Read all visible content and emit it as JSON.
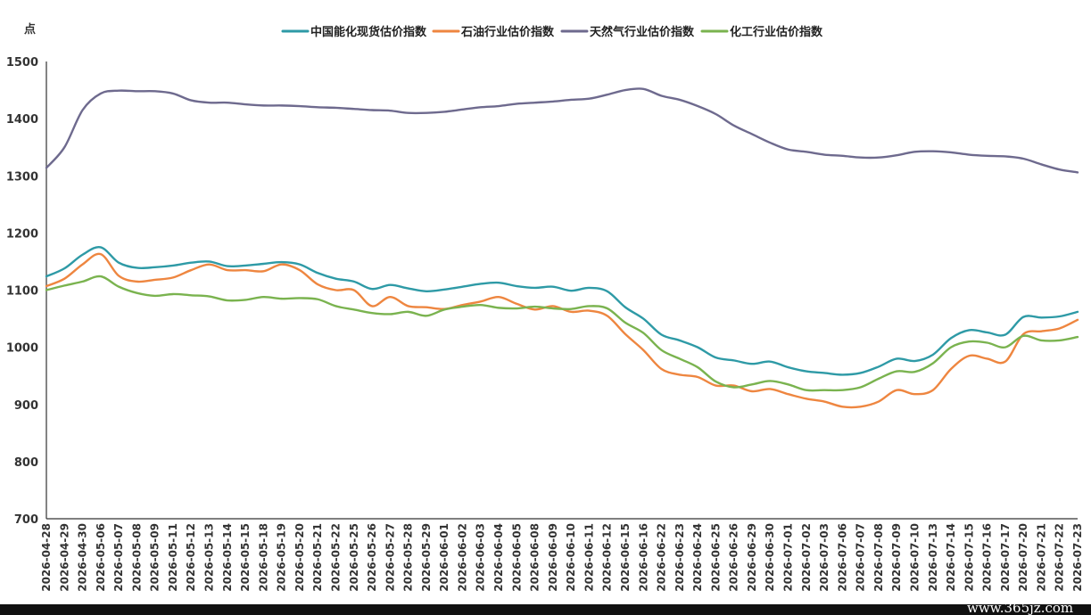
{
  "chart_data": {
    "type": "line",
    "y_unit_label": "点",
    "ylim": [
      700,
      1500
    ],
    "yticks": [
      700,
      800,
      900,
      1000,
      1100,
      1200,
      1300,
      1400,
      1500
    ],
    "grid": false,
    "legend_position": "top-center",
    "x": [
      "2026-04-28",
      "2026-04-29",
      "2026-04-30",
      "2026-05-06",
      "2026-05-07",
      "2026-05-08",
      "2026-05-09",
      "2026-05-11",
      "2026-05-12",
      "2026-05-13",
      "2026-05-14",
      "2026-05-15",
      "2026-05-18",
      "2026-05-19",
      "2026-05-20",
      "2026-05-21",
      "2026-05-22",
      "2026-05-25",
      "2026-05-26",
      "2026-05-27",
      "2026-05-28",
      "2026-05-29",
      "2026-06-01",
      "2026-06-02",
      "2026-06-03",
      "2026-06-04",
      "2026-06-05",
      "2026-06-08",
      "2026-06-09",
      "2026-06-10",
      "2026-06-11",
      "2026-06-12",
      "2026-06-15",
      "2026-06-16",
      "2026-06-22",
      "2026-06-23",
      "2026-06-24",
      "2026-06-25",
      "2026-06-26",
      "2026-06-29",
      "2026-06-30",
      "2026-07-01",
      "2026-07-02",
      "2026-07-03",
      "2026-07-06",
      "2026-07-07",
      "2026-07-08",
      "2026-07-09",
      "2026-07-10",
      "2026-07-13",
      "2026-07-14",
      "2026-07-15",
      "2026-07-16",
      "2026-07-17",
      "2026-07-20",
      "2026-07-21",
      "2026-07-22",
      "2026-07-23"
    ],
    "series": [
      {
        "name": "中国能化现货估价指数",
        "color": "#2e9aa6",
        "values": [
          1124,
          1138,
          1162,
          1175,
          1148,
          1139,
          1140,
          1143,
          1148,
          1150,
          1142,
          1143,
          1146,
          1149,
          1145,
          1130,
          1120,
          1115,
          1102,
          1109,
          1103,
          1098,
          1101,
          1106,
          1111,
          1113,
          1107,
          1104,
          1106,
          1099,
          1104,
          1098,
          1070,
          1050,
          1022,
          1012,
          1000,
          982,
          977,
          971,
          975,
          965,
          958,
          955,
          952,
          955,
          966,
          980,
          976,
          987,
          1016,
          1030,
          1026,
          1022,
          1053,
          1052,
          1054,
          1062
        ]
      },
      {
        "name": "石油行业估价指数",
        "color": "#ee8640",
        "values": [
          1107,
          1120,
          1145,
          1163,
          1125,
          1115,
          1118,
          1122,
          1135,
          1145,
          1135,
          1135,
          1133,
          1145,
          1135,
          1110,
          1100,
          1100,
          1072,
          1088,
          1072,
          1070,
          1067,
          1074,
          1080,
          1088,
          1076,
          1066,
          1072,
          1062,
          1064,
          1055,
          1023,
          995,
          962,
          952,
          948,
          933,
          933,
          923,
          927,
          918,
          910,
          905,
          896,
          896,
          905,
          925,
          918,
          925,
          962,
          985,
          980,
          975,
          1023,
          1028,
          1033,
          1048
        ]
      },
      {
        "name": "天然气行业估价指数",
        "color": "#6e6a8e",
        "values": [
          1314,
          1350,
          1415,
          1444,
          1449,
          1448,
          1448,
          1444,
          1432,
          1428,
          1428,
          1425,
          1423,
          1423,
          1422,
          1420,
          1419,
          1417,
          1415,
          1414,
          1410,
          1410,
          1412,
          1416,
          1420,
          1422,
          1426,
          1428,
          1430,
          1433,
          1435,
          1442,
          1450,
          1452,
          1440,
          1433,
          1422,
          1408,
          1388,
          1373,
          1358,
          1346,
          1342,
          1337,
          1335,
          1332,
          1332,
          1336,
          1342,
          1343,
          1341,
          1337,
          1335,
          1334,
          1330,
          1320,
          1311,
          1306
        ]
      },
      {
        "name": "化工行业估价指数",
        "color": "#7ab34f",
        "values": [
          1100,
          1108,
          1115,
          1124,
          1106,
          1095,
          1090,
          1093,
          1091,
          1089,
          1082,
          1083,
          1088,
          1085,
          1086,
          1084,
          1072,
          1066,
          1060,
          1058,
          1062,
          1055,
          1066,
          1071,
          1074,
          1069,
          1068,
          1071,
          1068,
          1067,
          1072,
          1068,
          1043,
          1025,
          995,
          980,
          965,
          940,
          930,
          935,
          941,
          935,
          925,
          925,
          925,
          930,
          945,
          958,
          957,
          972,
          1000,
          1010,
          1008,
          1000,
          1020,
          1012,
          1012,
          1018
        ]
      }
    ]
  },
  "watermark": "www.365jz.com"
}
